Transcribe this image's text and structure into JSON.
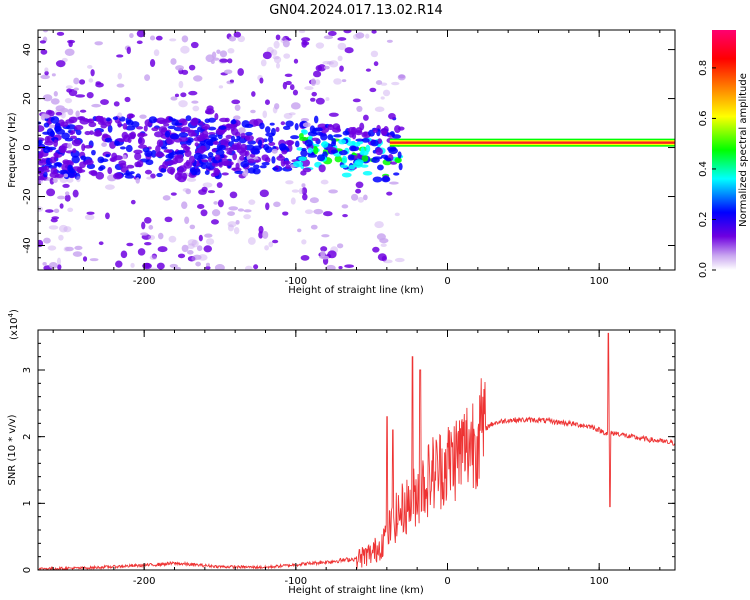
{
  "title": "GN04.2024.017.13.02.R14",
  "chart_data": [
    {
      "type": "heatmap",
      "xlabel": "Height of straight line (km)",
      "ylabel": "Frequency (Hz)",
      "xlim": [
        -270,
        150
      ],
      "ylim": [
        -50,
        48
      ],
      "xticks": [
        -200,
        -100,
        0,
        100
      ],
      "yticks": [
        -40,
        -20,
        0,
        20,
        40
      ],
      "colorbar": {
        "label": "Normalized spectral amplitude",
        "range": [
          0,
          0.95
        ],
        "ticks": [
          "0.0",
          "0.2",
          "0.4",
          "0.6",
          "0.8"
        ],
        "colors": [
          "#ffffff",
          "#c9a6f0",
          "#6e00e0",
          "#0000ff",
          "#00ffff",
          "#00ff00",
          "#ffff00",
          "#ff8000",
          "#ff0000",
          "#ff0070"
        ]
      },
      "features": {
        "carrier_frequency_hz": 2,
        "carrier_start_km": -38,
        "noise_region_km": [
          -270,
          -30
        ],
        "noise_band_hz": [
          -50,
          48
        ]
      }
    },
    {
      "type": "line",
      "xlabel": "Height of straight line (km)",
      "ylabel": "SNR (10 * v/v)",
      "exponent_label": "(x10",
      "exponent_value": "4",
      "xlim": [
        -270,
        150
      ],
      "ylim": [
        0,
        3.6
      ],
      "xticks": [
        -200,
        -100,
        0,
        100
      ],
      "yticks": [
        0,
        1,
        2,
        3
      ],
      "series": [
        {
          "color": "#ee3333",
          "profile": {
            "x": [
              -270,
              -240,
              -200,
              -180,
              -150,
              -120,
              -100,
              -80,
              -60,
              -50,
              -45,
              -40,
              -35,
              -30,
              -25,
              -20,
              -15,
              -10,
              0,
              10,
              20,
              30,
              40,
              60,
              80,
              95,
              100,
              105,
              108,
              112,
              120,
              135,
              150
            ],
            "y": [
              0.02,
              0.03,
              0.07,
              0.1,
              0.05,
              0.04,
              0.08,
              0.12,
              0.17,
              0.25,
              0.35,
              0.55,
              0.75,
              0.9,
              1.0,
              1.15,
              1.3,
              1.45,
              1.6,
              1.8,
              2.05,
              2.2,
              2.25,
              2.25,
              2.2,
              2.15,
              2.1,
              2.05,
              2.05,
              2.05,
              2.0,
              1.95,
              1.9
            ]
          },
          "spikes": [
            {
              "x": -40,
              "y": 2.3
            },
            {
              "x": -36,
              "y": 2.1
            },
            {
              "x": -23,
              "y": 3.2
            },
            {
              "x": -18,
              "y": 3.0
            },
            {
              "x": 106,
              "y": 3.55
            },
            {
              "x": 107,
              "y": 0.95
            }
          ]
        }
      ]
    }
  ]
}
